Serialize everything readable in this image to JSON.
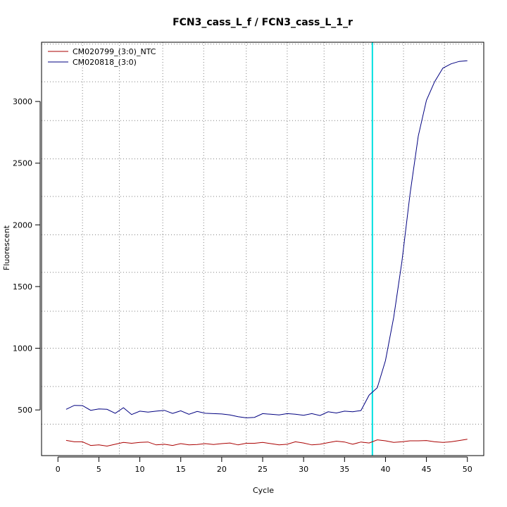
{
  "chart_data": {
    "type": "line",
    "title": "FCN3_cass_L_f / FCN3_cass_L_1_r",
    "xlabel": "Cycle",
    "ylabel": "Fluorescent",
    "xlim": [
      -2,
      52
    ],
    "ylim": [
      130,
      3480
    ],
    "x_ticks": [
      0,
      5,
      10,
      15,
      20,
      25,
      30,
      35,
      40,
      45,
      50
    ],
    "y_ticks": [
      500,
      1000,
      1500,
      2000,
      2500,
      3000
    ],
    "grid": true,
    "grid_x_dotted": [
      -2,
      3,
      7.5,
      12.8,
      17.8,
      23,
      28,
      32.5,
      37.3,
      42.2,
      47.2
    ],
    "grid_y_dotted": [
      385,
      690,
      1000,
      1300,
      1615,
      1920,
      2230,
      2535,
      2845,
      3160,
      3465
    ],
    "threshold_cycle": 38.4,
    "legend_position": "top-left",
    "x": [
      1,
      2,
      3,
      4,
      5,
      6,
      7,
      8,
      9,
      10,
      11,
      12,
      13,
      14,
      15,
      16,
      17,
      18,
      19,
      20,
      21,
      22,
      23,
      24,
      25,
      26,
      27,
      28,
      29,
      30,
      31,
      32,
      33,
      34,
      35,
      36,
      37,
      38,
      39,
      40,
      41,
      42,
      43,
      44,
      45,
      46,
      47,
      48,
      49,
      50
    ],
    "series": [
      {
        "name": "CM020799_(3:0)_NTC",
        "color": "#aa0000",
        "values": [
          253,
          242,
          242,
          212,
          217,
          207,
          222,
          237,
          230,
          237,
          240,
          217,
          222,
          212,
          227,
          217,
          220,
          227,
          220,
          227,
          232,
          217,
          230,
          230,
          237,
          227,
          217,
          222,
          242,
          232,
          217,
          222,
          235,
          247,
          240,
          222,
          240,
          232,
          258,
          250,
          237,
          242,
          250,
          250,
          252,
          242,
          237,
          242,
          252,
          263
        ]
      },
      {
        "name": "CM020818_(3:0)",
        "color": "#000080",
        "values": [
          505,
          537,
          535,
          497,
          508,
          505,
          473,
          518,
          463,
          490,
          482,
          490,
          497,
          472,
          493,
          465,
          488,
          473,
          470,
          467,
          460,
          445,
          436,
          440,
          470,
          465,
          460,
          470,
          465,
          457,
          470,
          455,
          485,
          475,
          490,
          485,
          495,
          620,
          680,
          900,
          1250,
          1700,
          2250,
          2720,
          3010,
          3160,
          3270,
          3305,
          3325,
          3330
        ]
      }
    ],
    "colors": {
      "threshold": "#00e0e0",
      "grid": "#808080",
      "axis": "#000000"
    }
  }
}
